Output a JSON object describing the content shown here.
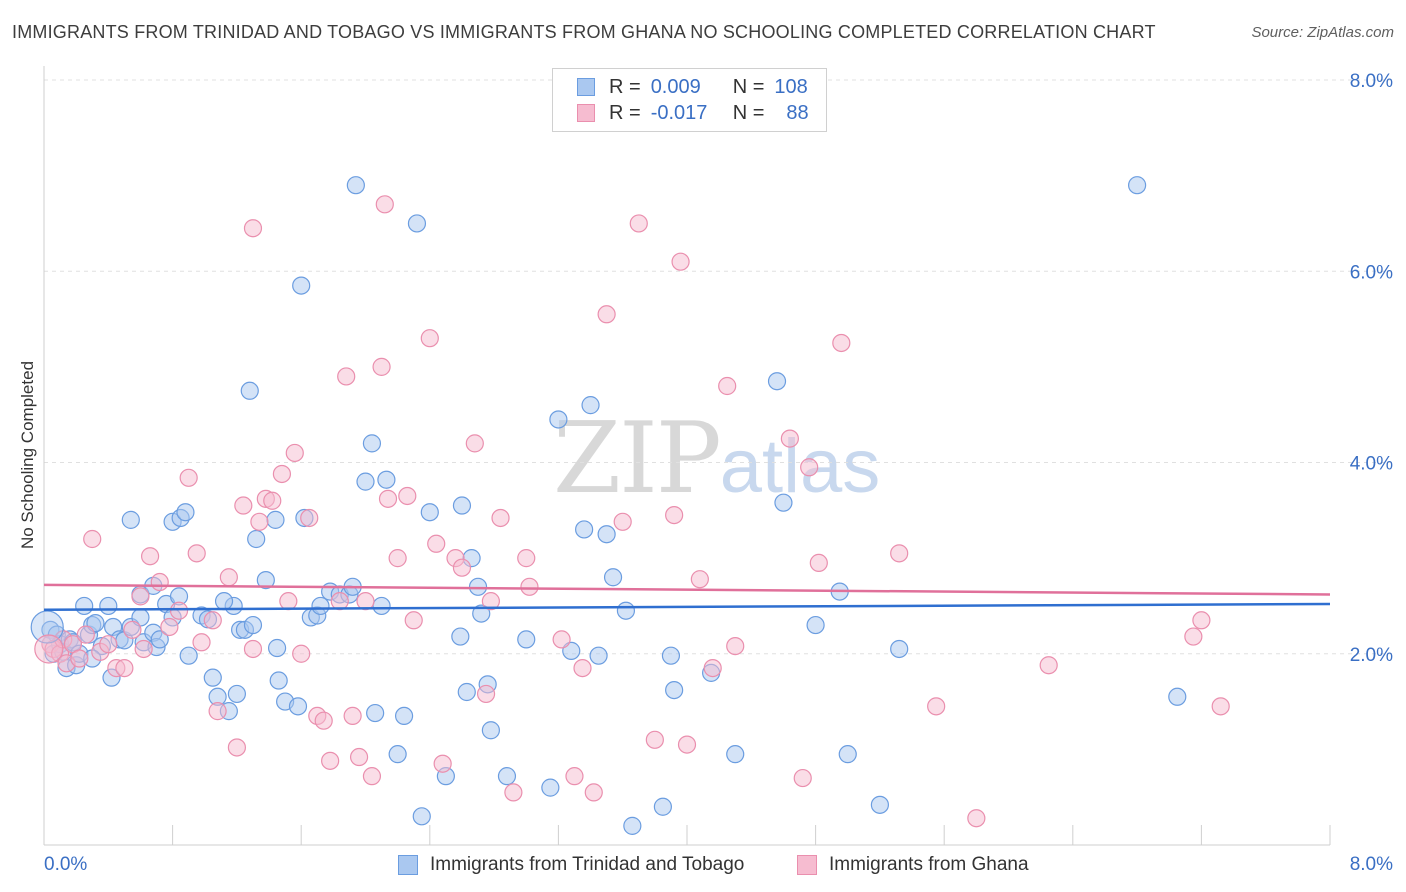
{
  "title": "IMMIGRANTS FROM TRINIDAD AND TOBAGO VS IMMIGRANTS FROM GHANA NO SCHOOLING COMPLETED CORRELATION CHART",
  "source": "Source: ZipAtlas.com",
  "watermark": {
    "zip": "ZIP",
    "atlas": "atlas"
  },
  "legend": {
    "rows": [
      {
        "r_label": "R =",
        "r_value": "0.009",
        "n_label": "N =",
        "n_value": "108"
      },
      {
        "r_label": "R =",
        "r_value": "-0.017",
        "n_label": "N =",
        "n_value": "88"
      }
    ]
  },
  "colors": {
    "series1_fill": "#aac8f0",
    "series1_stroke": "#6b9de0",
    "series1_line": "#2f6fd0",
    "series2_fill": "#f6bcd0",
    "series2_stroke": "#ea8fae",
    "series2_line": "#e0709a",
    "tick_label": "#3a6fc4"
  },
  "chart_data": {
    "type": "scatter",
    "title": "IMMIGRANTS FROM TRINIDAD AND TOBAGO VS IMMIGRANTS FROM GHANA NO SCHOOLING COMPLETED CORRELATION CHART",
    "xlabel": "",
    "ylabel": "No Schooling Completed",
    "xlim": [
      0,
      8
    ],
    "ylim": [
      0,
      8
    ],
    "x_tick_labels": [
      "0.0%",
      "8.0%"
    ],
    "y_ticks": [
      2,
      4,
      6,
      8
    ],
    "y_tick_labels": [
      "2.0%",
      "4.0%",
      "6.0%",
      "8.0%"
    ],
    "grid": true,
    "legend_position": "top-center",
    "series": [
      {
        "name": "Immigrants from Trinidad and Tobago",
        "trend": [
          [
            0,
            2.46
          ],
          [
            8,
            2.52
          ]
        ],
        "points": [
          [
            0.04,
            2.25
          ],
          [
            0.06,
            2.0
          ],
          [
            0.08,
            2.2
          ],
          [
            0.1,
            2.1
          ],
          [
            0.12,
            2.02
          ],
          [
            0.14,
            1.85
          ],
          [
            0.16,
            2.15
          ],
          [
            0.18,
            2.12
          ],
          [
            0.2,
            1.88
          ],
          [
            0.22,
            2.0
          ],
          [
            0.25,
            2.5
          ],
          [
            0.28,
            2.2
          ],
          [
            0.3,
            2.3
          ],
          [
            0.32,
            2.32
          ],
          [
            0.36,
            2.08
          ],
          [
            0.4,
            2.5
          ],
          [
            0.43,
            2.28
          ],
          [
            0.47,
            2.15
          ],
          [
            0.5,
            2.14
          ],
          [
            0.54,
            2.28
          ],
          [
            0.6,
            2.38
          ],
          [
            0.62,
            2.12
          ],
          [
            0.68,
            2.22
          ],
          [
            0.7,
            2.07
          ],
          [
            0.3,
            1.95
          ],
          [
            0.42,
            1.75
          ],
          [
            0.6,
            2.62
          ],
          [
            0.68,
            2.71
          ],
          [
            0.72,
            2.15
          ],
          [
            0.76,
            2.52
          ],
          [
            0.8,
            2.38
          ],
          [
            0.84,
            2.6
          ],
          [
            0.9,
            1.98
          ],
          [
            0.98,
            2.4
          ],
          [
            1.02,
            2.36
          ],
          [
            0.8,
            3.38
          ],
          [
            0.54,
            3.4
          ],
          [
            0.85,
            3.42
          ],
          [
            0.88,
            3.48
          ],
          [
            1.18,
            2.5
          ],
          [
            1.12,
            2.55
          ],
          [
            1.22,
            2.25
          ],
          [
            1.05,
            1.75
          ],
          [
            1.08,
            1.55
          ],
          [
            1.15,
            1.4
          ],
          [
            1.2,
            1.58
          ],
          [
            1.25,
            2.25
          ],
          [
            1.3,
            2.3
          ],
          [
            1.32,
            3.2
          ],
          [
            1.44,
            3.4
          ],
          [
            1.38,
            2.77
          ],
          [
            1.45,
            2.06
          ],
          [
            1.46,
            1.72
          ],
          [
            1.5,
            1.5
          ],
          [
            1.58,
            1.45
          ],
          [
            1.62,
            3.42
          ],
          [
            1.66,
            2.38
          ],
          [
            1.7,
            2.4
          ],
          [
            1.72,
            2.5
          ],
          [
            1.78,
            2.65
          ],
          [
            1.84,
            2.62
          ],
          [
            1.9,
            2.62
          ],
          [
            1.92,
            2.7
          ],
          [
            2.0,
            3.8
          ],
          [
            2.04,
            4.2
          ],
          [
            2.06,
            1.38
          ],
          [
            2.1,
            2.5
          ],
          [
            2.13,
            3.82
          ],
          [
            2.2,
            0.95
          ],
          [
            2.24,
            1.35
          ],
          [
            2.35,
            0.3
          ],
          [
            2.4,
            3.48
          ],
          [
            2.5,
            0.72
          ],
          [
            2.59,
            2.18
          ],
          [
            2.6,
            3.55
          ],
          [
            2.63,
            1.6
          ],
          [
            2.66,
            3.0
          ],
          [
            2.7,
            2.7
          ],
          [
            2.72,
            2.42
          ],
          [
            2.76,
            1.68
          ],
          [
            2.78,
            1.2
          ],
          [
            2.88,
            0.72
          ],
          [
            3.0,
            2.15
          ],
          [
            3.15,
            0.6
          ],
          [
            3.2,
            4.45
          ],
          [
            3.28,
            2.03
          ],
          [
            3.36,
            3.3
          ],
          [
            3.4,
            4.6
          ],
          [
            3.45,
            1.98
          ],
          [
            3.5,
            3.25
          ],
          [
            3.54,
            2.8
          ],
          [
            3.62,
            2.45
          ],
          [
            3.66,
            0.2
          ],
          [
            3.85,
            0.4
          ],
          [
            3.9,
            1.98
          ],
          [
            3.92,
            1.62
          ],
          [
            4.15,
            1.8
          ],
          [
            4.3,
            0.95
          ],
          [
            4.56,
            4.85
          ],
          [
            4.6,
            3.58
          ],
          [
            4.8,
            2.3
          ],
          [
            4.95,
            2.65
          ],
          [
            5.0,
            0.95
          ],
          [
            5.2,
            0.42
          ],
          [
            5.32,
            2.05
          ],
          [
            7.05,
            1.55
          ],
          [
            1.94,
            6.9
          ],
          [
            1.6,
            5.85
          ],
          [
            1.28,
            4.75
          ],
          [
            2.32,
            6.5
          ],
          [
            6.8,
            6.9
          ]
        ]
      },
      {
        "name": "Immigrants from Ghana",
        "trend": [
          [
            0,
            2.72
          ],
          [
            8,
            2.62
          ]
        ],
        "points": [
          [
            0.04,
            2.1
          ],
          [
            0.06,
            2.05
          ],
          [
            0.1,
            2.0
          ],
          [
            0.12,
            2.15
          ],
          [
            0.14,
            1.9
          ],
          [
            0.18,
            2.1
          ],
          [
            0.22,
            1.95
          ],
          [
            0.26,
            2.2
          ],
          [
            0.3,
            3.2
          ],
          [
            0.35,
            2.02
          ],
          [
            0.4,
            2.1
          ],
          [
            0.45,
            1.85
          ],
          [
            0.5,
            1.85
          ],
          [
            0.55,
            2.25
          ],
          [
            0.6,
            2.6
          ],
          [
            0.62,
            2.05
          ],
          [
            0.66,
            3.02
          ],
          [
            0.72,
            2.75
          ],
          [
            0.78,
            2.28
          ],
          [
            0.84,
            2.45
          ],
          [
            0.9,
            3.84
          ],
          [
            0.95,
            3.05
          ],
          [
            0.98,
            2.12
          ],
          [
            1.05,
            2.35
          ],
          [
            1.08,
            1.4
          ],
          [
            1.15,
            2.8
          ],
          [
            1.2,
            1.02
          ],
          [
            1.24,
            3.55
          ],
          [
            1.3,
            2.05
          ],
          [
            1.34,
            3.38
          ],
          [
            1.38,
            3.62
          ],
          [
            1.42,
            3.6
          ],
          [
            1.48,
            3.88
          ],
          [
            1.52,
            2.55
          ],
          [
            1.56,
            4.1
          ],
          [
            1.6,
            2.0
          ],
          [
            1.65,
            3.42
          ],
          [
            1.7,
            1.35
          ],
          [
            1.74,
            1.3
          ],
          [
            1.78,
            0.88
          ],
          [
            1.84,
            2.55
          ],
          [
            1.88,
            4.9
          ],
          [
            1.92,
            1.35
          ],
          [
            1.96,
            0.92
          ],
          [
            2.0,
            2.55
          ],
          [
            2.04,
            0.72
          ],
          [
            2.1,
            5.0
          ],
          [
            2.14,
            3.62
          ],
          [
            2.2,
            3.0
          ],
          [
            2.26,
            3.65
          ],
          [
            2.3,
            2.35
          ],
          [
            2.4,
            5.3
          ],
          [
            2.44,
            3.15
          ],
          [
            2.48,
            0.85
          ],
          [
            2.56,
            3.0
          ],
          [
            2.6,
            2.9
          ],
          [
            2.68,
            4.2
          ],
          [
            2.75,
            1.58
          ],
          [
            2.78,
            2.55
          ],
          [
            2.84,
            3.42
          ],
          [
            2.92,
            0.55
          ],
          [
            3.0,
            3.0
          ],
          [
            3.02,
            2.7
          ],
          [
            3.22,
            2.15
          ],
          [
            3.3,
            0.72
          ],
          [
            3.35,
            1.85
          ],
          [
            3.42,
            0.55
          ],
          [
            3.5,
            5.55
          ],
          [
            3.6,
            3.38
          ],
          [
            3.7,
            6.5
          ],
          [
            3.8,
            1.1
          ],
          [
            3.92,
            3.45
          ],
          [
            3.96,
            6.1
          ],
          [
            4.0,
            1.05
          ],
          [
            4.08,
            2.78
          ],
          [
            4.16,
            1.85
          ],
          [
            4.25,
            4.8
          ],
          [
            4.3,
            2.08
          ],
          [
            4.64,
            4.25
          ],
          [
            4.72,
            0.7
          ],
          [
            4.76,
            3.95
          ],
          [
            4.82,
            2.95
          ],
          [
            4.96,
            5.25
          ],
          [
            5.32,
            3.05
          ],
          [
            5.55,
            1.45
          ],
          [
            6.25,
            1.88
          ],
          [
            7.15,
            2.18
          ],
          [
            7.2,
            2.35
          ],
          [
            7.32,
            1.45
          ],
          [
            5.8,
            0.28
          ],
          [
            1.3,
            6.45
          ],
          [
            2.12,
            6.7
          ]
        ]
      }
    ]
  },
  "bottom_legend": [
    {
      "label": "Immigrants from Trinidad and Tobago"
    },
    {
      "label": "Immigrants from Ghana"
    }
  ]
}
